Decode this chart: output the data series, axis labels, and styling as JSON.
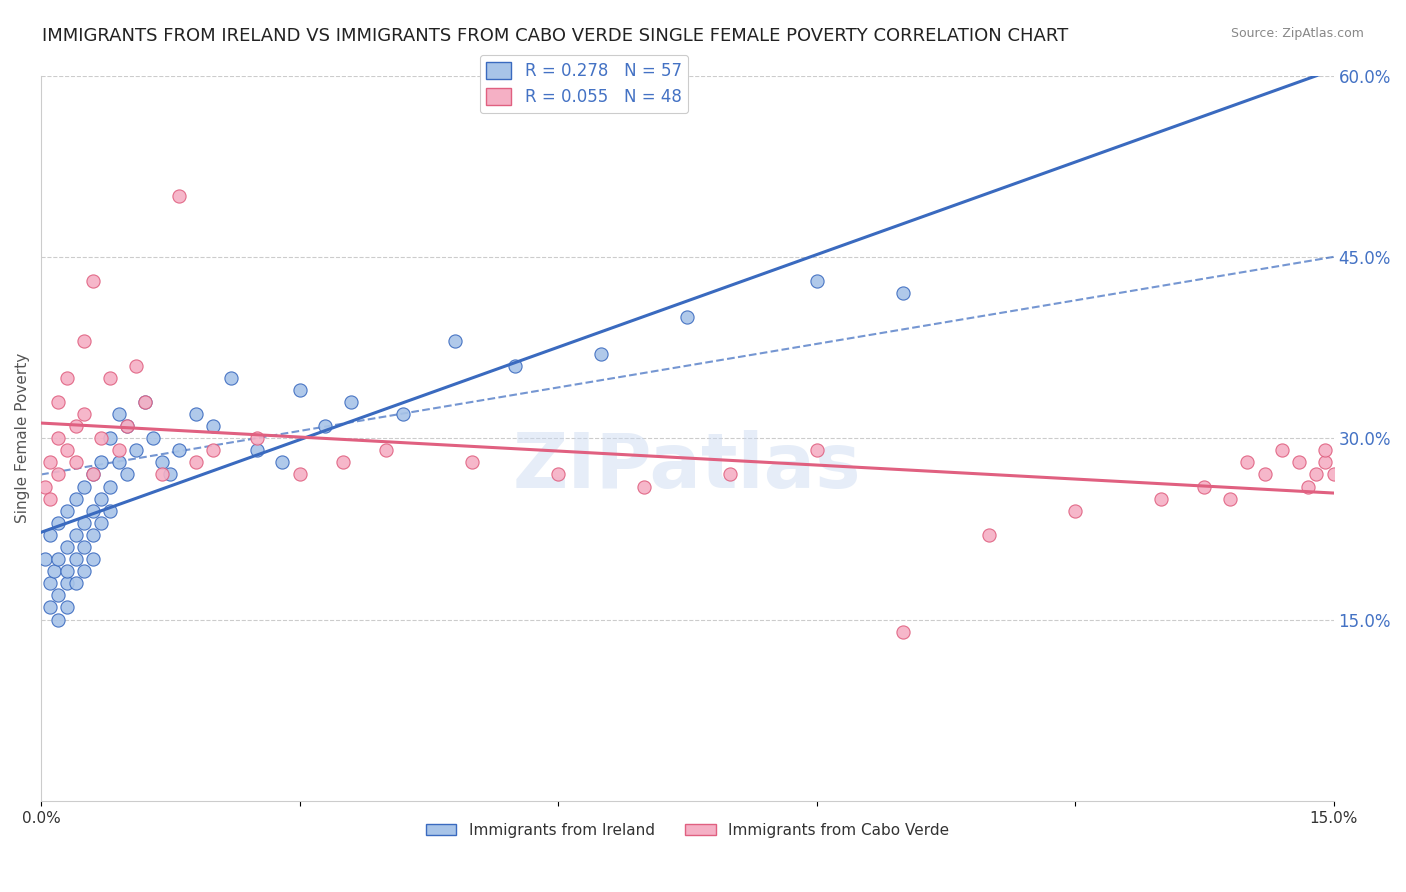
{
  "title": "IMMIGRANTS FROM IRELAND VS IMMIGRANTS FROM CABO VERDE SINGLE FEMALE POVERTY CORRELATION CHART",
  "source": "Source: ZipAtlas.com",
  "ylabel": "Single Female Poverty",
  "xlim": [
    0.0,
    0.15
  ],
  "ylim": [
    0.0,
    0.6
  ],
  "yticks_right": [
    0.15,
    0.3,
    0.45,
    0.6
  ],
  "ytick_labels_right": [
    "15.0%",
    "30.0%",
    "45.0%",
    "60.0%"
  ],
  "ireland_R": 0.278,
  "ireland_N": 57,
  "caboverde_R": 0.055,
  "caboverde_N": 48,
  "ireland_color": "#a8c4e8",
  "caboverde_color": "#f5b0c5",
  "ireland_line_color": "#3a6abf",
  "caboverde_line_color": "#e06080",
  "background_color": "#ffffff",
  "title_fontsize": 13,
  "axis_label_fontsize": 11,
  "tick_fontsize": 11,
  "legend_fontsize": 12,
  "watermark": "ZIPatlas",
  "ireland_x": [
    0.0005,
    0.001,
    0.001,
    0.001,
    0.0015,
    0.002,
    0.002,
    0.002,
    0.002,
    0.003,
    0.003,
    0.003,
    0.003,
    0.003,
    0.004,
    0.004,
    0.004,
    0.004,
    0.005,
    0.005,
    0.005,
    0.005,
    0.006,
    0.006,
    0.006,
    0.006,
    0.007,
    0.007,
    0.007,
    0.008,
    0.008,
    0.008,
    0.009,
    0.009,
    0.01,
    0.01,
    0.011,
    0.012,
    0.013,
    0.014,
    0.015,
    0.016,
    0.018,
    0.02,
    0.022,
    0.025,
    0.028,
    0.03,
    0.033,
    0.036,
    0.042,
    0.048,
    0.055,
    0.065,
    0.075,
    0.09,
    0.1
  ],
  "ireland_y": [
    0.2,
    0.18,
    0.22,
    0.16,
    0.19,
    0.17,
    0.2,
    0.23,
    0.15,
    0.18,
    0.21,
    0.24,
    0.19,
    0.16,
    0.22,
    0.25,
    0.2,
    0.18,
    0.23,
    0.26,
    0.21,
    0.19,
    0.24,
    0.27,
    0.22,
    0.2,
    0.25,
    0.28,
    0.23,
    0.26,
    0.3,
    0.24,
    0.28,
    0.32,
    0.27,
    0.31,
    0.29,
    0.33,
    0.3,
    0.28,
    0.27,
    0.29,
    0.32,
    0.31,
    0.35,
    0.29,
    0.28,
    0.34,
    0.31,
    0.33,
    0.32,
    0.38,
    0.36,
    0.37,
    0.4,
    0.43,
    0.42
  ],
  "caboverde_x": [
    0.0005,
    0.001,
    0.001,
    0.002,
    0.002,
    0.002,
    0.003,
    0.003,
    0.004,
    0.004,
    0.005,
    0.005,
    0.006,
    0.006,
    0.007,
    0.008,
    0.009,
    0.01,
    0.011,
    0.012,
    0.014,
    0.016,
    0.018,
    0.02,
    0.025,
    0.03,
    0.035,
    0.04,
    0.05,
    0.06,
    0.07,
    0.08,
    0.09,
    0.1,
    0.11,
    0.12,
    0.13,
    0.135,
    0.138,
    0.14,
    0.142,
    0.144,
    0.146,
    0.147,
    0.148,
    0.149,
    0.149,
    0.15
  ],
  "caboverde_y": [
    0.26,
    0.28,
    0.25,
    0.3,
    0.27,
    0.33,
    0.29,
    0.35,
    0.31,
    0.28,
    0.32,
    0.38,
    0.27,
    0.43,
    0.3,
    0.35,
    0.29,
    0.31,
    0.36,
    0.33,
    0.27,
    0.5,
    0.28,
    0.29,
    0.3,
    0.27,
    0.28,
    0.29,
    0.28,
    0.27,
    0.26,
    0.27,
    0.29,
    0.14,
    0.22,
    0.24,
    0.25,
    0.26,
    0.25,
    0.28,
    0.27,
    0.29,
    0.28,
    0.26,
    0.27,
    0.28,
    0.29,
    0.27
  ]
}
